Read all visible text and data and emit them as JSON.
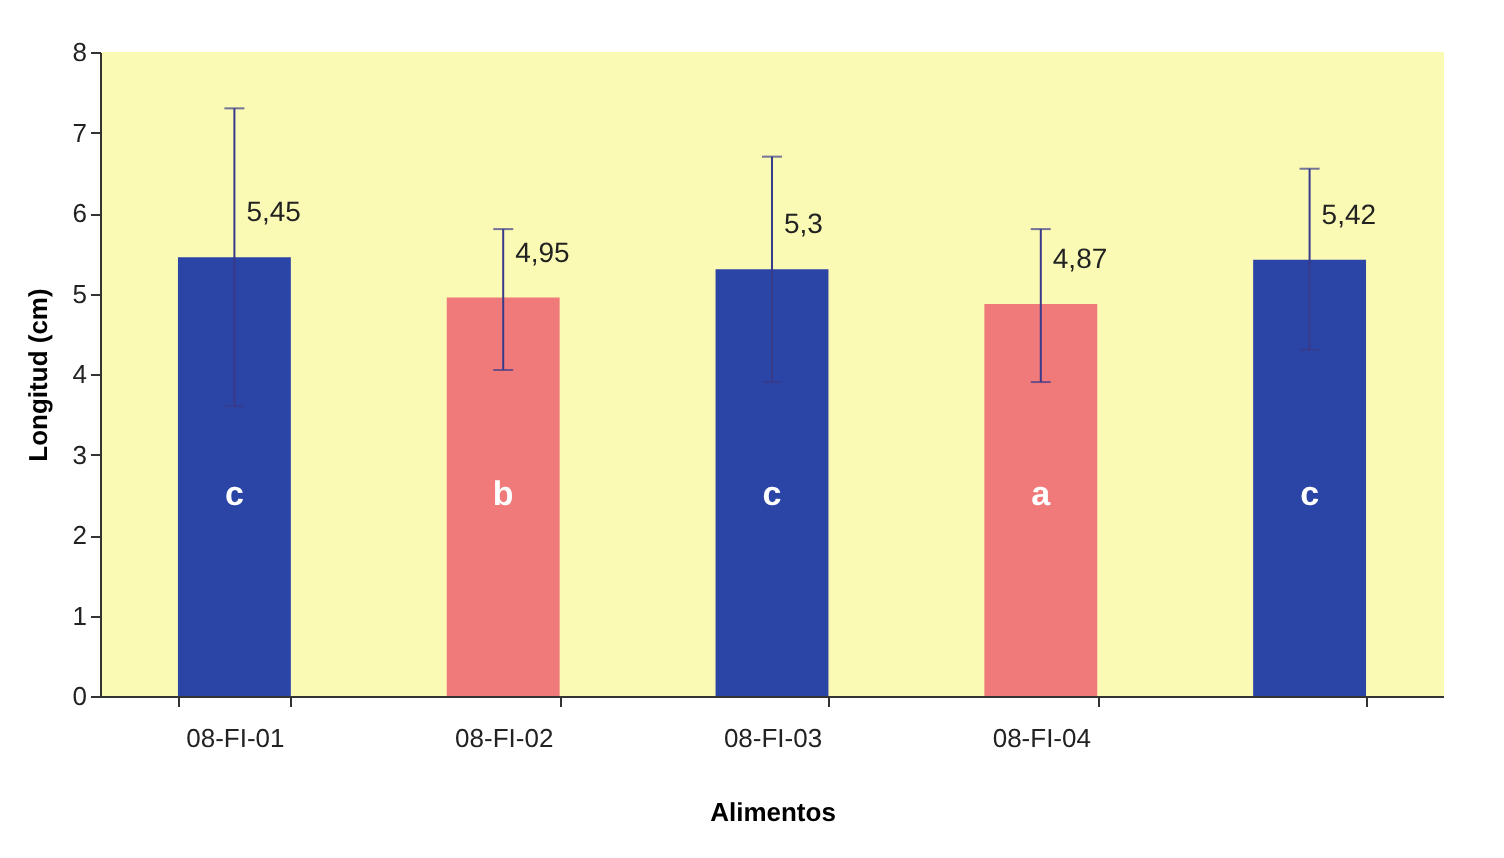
{
  "chart_data": {
    "type": "bar",
    "xlabel": "Alimentos",
    "ylabel": "Longitud (cm)",
    "categories": [
      "08-FI-01",
      "08-FI-02",
      "08-FI-03",
      "08-FI-04",
      null
    ],
    "values": [
      5.45,
      4.95,
      5.3,
      4.87,
      5.42
    ],
    "colors": [
      "#2b45a6",
      "#f07a7a",
      "#2b45a6",
      "#f07a7a",
      "#2b45a6"
    ],
    "errors": [
      [
        3.6,
        7.3
      ],
      [
        4.05,
        5.8
      ],
      [
        3.9,
        6.7
      ],
      [
        3.9,
        5.8
      ],
      [
        4.3,
        6.55
      ]
    ],
    "value_labels": [
      "5,45",
      "4,95",
      "5,3",
      "4,87",
      "5,42"
    ],
    "annotations": [
      "c",
      "b",
      "c",
      "a",
      "c"
    ],
    "ylim": [
      0,
      8
    ],
    "yticks": [
      0,
      1,
      2,
      3,
      4,
      5,
      6,
      7,
      8
    ],
    "grid": false
  }
}
